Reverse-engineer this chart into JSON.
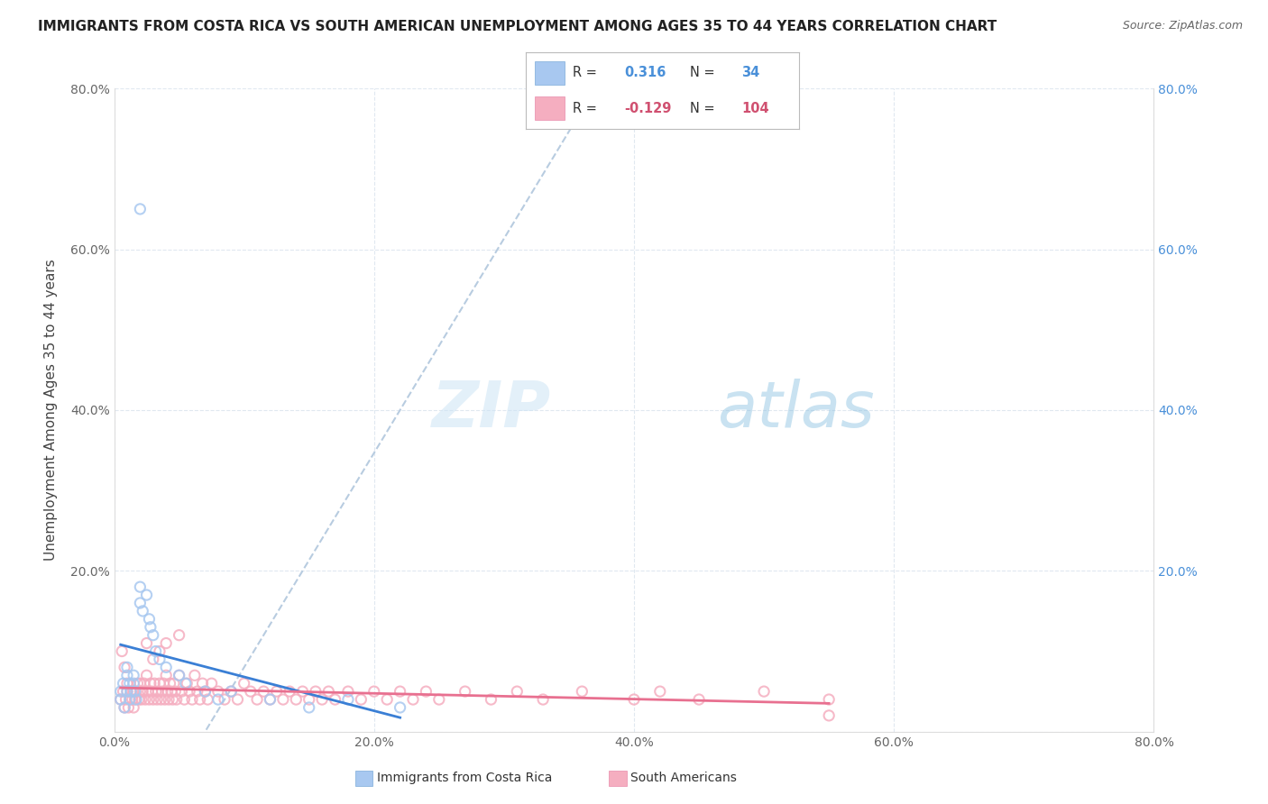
{
  "title": "IMMIGRANTS FROM COSTA RICA VS SOUTH AMERICAN UNEMPLOYMENT AMONG AGES 35 TO 44 YEARS CORRELATION CHART",
  "source": "Source: ZipAtlas.com",
  "ylabel": "Unemployment Among Ages 35 to 44 years",
  "xlim": [
    0,
    0.8
  ],
  "ylim": [
    0,
    0.8
  ],
  "xticks": [
    0.0,
    0.2,
    0.4,
    0.6,
    0.8
  ],
  "yticks": [
    0.0,
    0.2,
    0.4,
    0.6,
    0.8
  ],
  "xticklabels": [
    "0.0%",
    "20.0%",
    "40.0%",
    "60.0%",
    "80.0%"
  ],
  "yticklabels": [
    "",
    "20.0%",
    "40.0%",
    "60.0%",
    "80.0%"
  ],
  "right_yticklabels": [
    "",
    "20.0%",
    "40.0%",
    "60.0%",
    "80.0%"
  ],
  "blue_R": "0.316",
  "blue_N": "34",
  "pink_R": "-0.129",
  "pink_N": "104",
  "blue_color": "#a8c8f0",
  "pink_color": "#f5aec0",
  "blue_edge_color": "#7aaad8",
  "pink_edge_color": "#e88aaa",
  "blue_line_color": "#3a7fd5",
  "pink_line_color": "#e87090",
  "dashed_line_color": "#b8cce0",
  "legend_label_blue": "Immigrants from Costa Rica",
  "legend_label_pink": "South Americans",
  "watermark_zip": "ZIP",
  "watermark_atlas": "atlas",
  "blue_scatter_x": [
    0.005,
    0.005,
    0.007,
    0.008,
    0.01,
    0.01,
    0.01,
    0.012,
    0.012,
    0.013,
    0.015,
    0.015,
    0.016,
    0.017,
    0.02,
    0.02,
    0.022,
    0.025,
    0.027,
    0.028,
    0.03,
    0.032,
    0.035,
    0.04,
    0.05,
    0.055,
    0.07,
    0.08,
    0.09,
    0.12,
    0.15,
    0.18,
    0.22,
    0.02
  ],
  "blue_scatter_y": [
    0.04,
    0.05,
    0.06,
    0.03,
    0.05,
    0.07,
    0.08,
    0.04,
    0.06,
    0.05,
    0.06,
    0.07,
    0.05,
    0.04,
    0.16,
    0.18,
    0.15,
    0.17,
    0.14,
    0.13,
    0.12,
    0.1,
    0.09,
    0.08,
    0.07,
    0.06,
    0.05,
    0.04,
    0.05,
    0.04,
    0.03,
    0.04,
    0.03,
    0.65
  ],
  "pink_scatter_x": [
    0.005,
    0.007,
    0.008,
    0.009,
    0.01,
    0.01,
    0.011,
    0.012,
    0.013,
    0.014,
    0.015,
    0.015,
    0.016,
    0.017,
    0.018,
    0.019,
    0.02,
    0.02,
    0.021,
    0.022,
    0.023,
    0.024,
    0.025,
    0.026,
    0.027,
    0.028,
    0.029,
    0.03,
    0.031,
    0.032,
    0.033,
    0.034,
    0.035,
    0.036,
    0.037,
    0.038,
    0.039,
    0.04,
    0.041,
    0.042,
    0.043,
    0.044,
    0.045,
    0.046,
    0.047,
    0.048,
    0.05,
    0.052,
    0.054,
    0.056,
    0.058,
    0.06,
    0.062,
    0.064,
    0.066,
    0.068,
    0.07,
    0.072,
    0.075,
    0.08,
    0.085,
    0.09,
    0.095,
    0.1,
    0.105,
    0.11,
    0.115,
    0.12,
    0.125,
    0.13,
    0.135,
    0.14,
    0.145,
    0.15,
    0.155,
    0.16,
    0.165,
    0.17,
    0.18,
    0.19,
    0.2,
    0.21,
    0.22,
    0.23,
    0.24,
    0.25,
    0.27,
    0.29,
    0.31,
    0.33,
    0.36,
    0.4,
    0.42,
    0.45,
    0.5,
    0.55,
    0.006,
    0.008,
    0.025,
    0.03,
    0.035,
    0.04,
    0.05,
    0.55
  ],
  "pink_scatter_y": [
    0.04,
    0.05,
    0.03,
    0.04,
    0.05,
    0.06,
    0.03,
    0.04,
    0.05,
    0.04,
    0.03,
    0.05,
    0.04,
    0.05,
    0.06,
    0.04,
    0.05,
    0.06,
    0.04,
    0.05,
    0.06,
    0.04,
    0.07,
    0.05,
    0.04,
    0.06,
    0.05,
    0.04,
    0.06,
    0.05,
    0.04,
    0.05,
    0.06,
    0.04,
    0.05,
    0.06,
    0.04,
    0.07,
    0.05,
    0.04,
    0.06,
    0.05,
    0.04,
    0.06,
    0.05,
    0.04,
    0.07,
    0.05,
    0.04,
    0.06,
    0.05,
    0.04,
    0.07,
    0.05,
    0.04,
    0.06,
    0.05,
    0.04,
    0.06,
    0.05,
    0.04,
    0.05,
    0.04,
    0.06,
    0.05,
    0.04,
    0.05,
    0.04,
    0.05,
    0.04,
    0.05,
    0.04,
    0.05,
    0.04,
    0.05,
    0.04,
    0.05,
    0.04,
    0.05,
    0.04,
    0.05,
    0.04,
    0.05,
    0.04,
    0.05,
    0.04,
    0.05,
    0.04,
    0.05,
    0.04,
    0.05,
    0.04,
    0.05,
    0.04,
    0.05,
    0.04,
    0.1,
    0.08,
    0.11,
    0.09,
    0.1,
    0.11,
    0.12,
    0.02
  ],
  "background_color": "#ffffff",
  "grid_color": "#e0e8f0"
}
